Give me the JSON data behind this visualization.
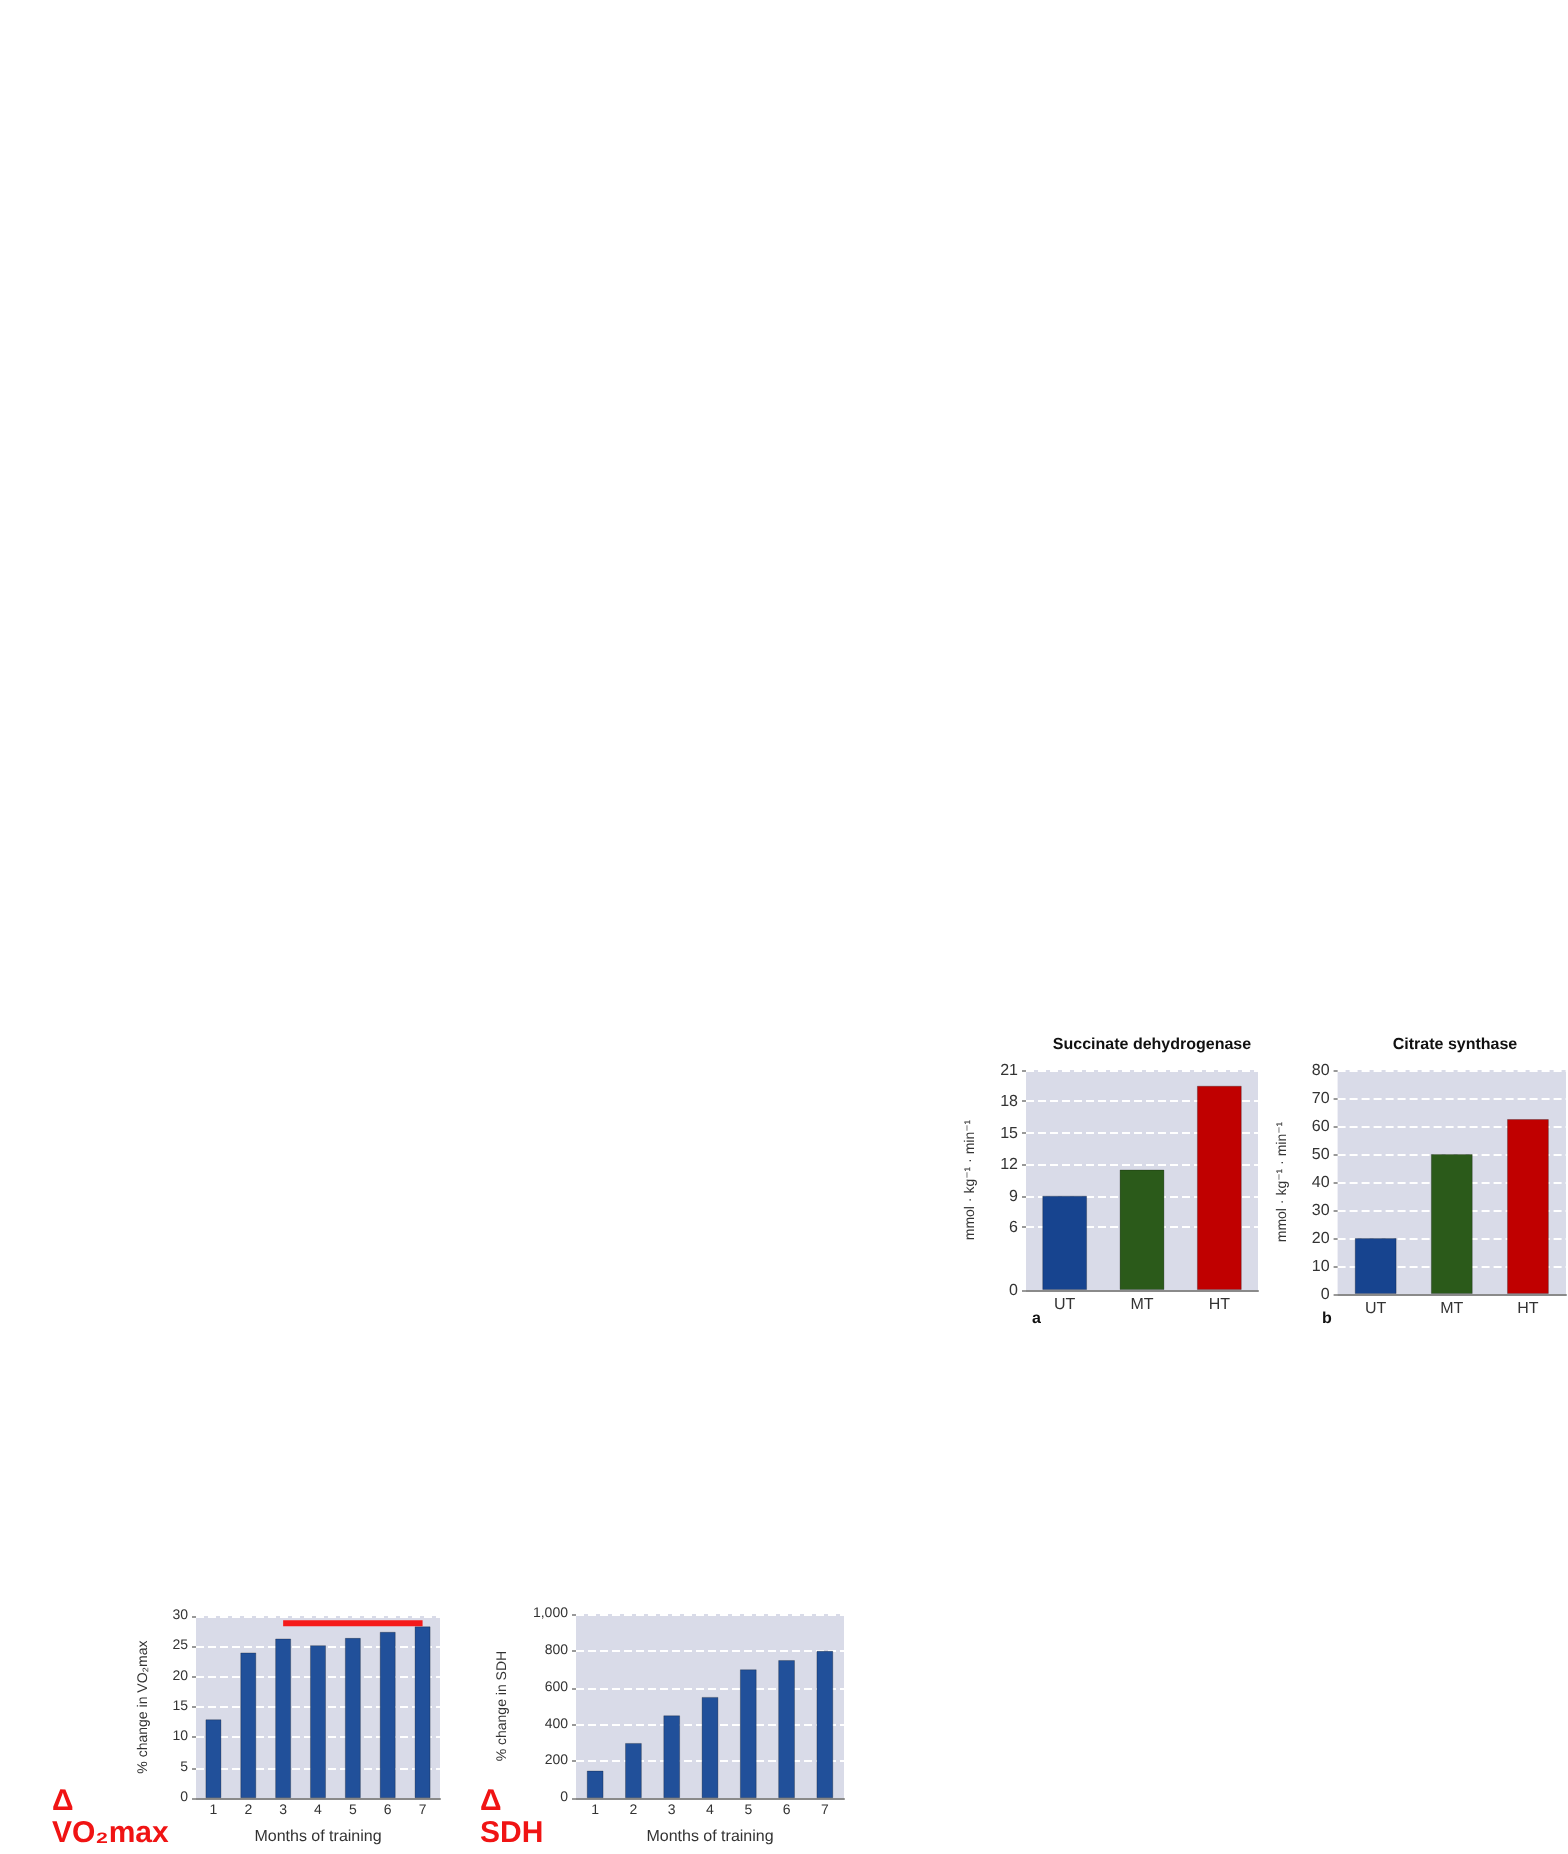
{
  "chart_data": [
    {
      "type": "bar",
      "title": "Succinate dehydrogenase",
      "categories": [
        "UT",
        "MT",
        "HT"
      ],
      "values": [
        9,
        11.5,
        19.5
      ],
      "colors": [
        "#17448f",
        "#2b5a1a",
        "#c00000"
      ],
      "ylabel": "mmol · kg⁻¹ · min⁻¹",
      "ylim": [
        0,
        21
      ],
      "yticks": [
        0,
        6,
        9,
        12,
        15,
        18,
        21
      ],
      "grid": "y",
      "annotations": [
        "a"
      ]
    },
    {
      "type": "bar",
      "title": "Citrate synthase",
      "categories": [
        "UT",
        "MT",
        "HT"
      ],
      "values": [
        20,
        50,
        62.5
      ],
      "colors": [
        "#17448f",
        "#2b5a1a",
        "#c00000"
      ],
      "ylabel": "mmol · kg⁻¹ · min⁻¹",
      "ylim": [
        0,
        80
      ],
      "yticks": [
        0,
        10,
        20,
        30,
        40,
        50,
        60,
        70,
        80
      ],
      "grid": "y",
      "annotations": [
        "b"
      ]
    },
    {
      "type": "bar",
      "categories": [
        "1",
        "2",
        "3",
        "4",
        "5",
        "6",
        "7"
      ],
      "series": [
        {
          "color": "#21509a",
          "values": [
            13,
            24,
            26.3,
            25.2,
            26.4,
            27.4,
            28.3
          ]
        },
        {
          "type": "line",
          "x": [
            "3",
            "7"
          ],
          "values": [
            28.8,
            28.8
          ],
          "color": "#f51a1a"
        }
      ],
      "xlabel": "Months of training",
      "ylabel": "% change in VO₂max",
      "ylim": [
        0,
        30
      ],
      "yticks": [
        0,
        5,
        10,
        15,
        20,
        25,
        30
      ],
      "grid": "y",
      "marker": "none",
      "annotations": [
        "Δ\nVO₂max"
      ]
    },
    {
      "type": "bar",
      "categories": [
        "1",
        "2",
        "3",
        "4",
        "5",
        "6",
        "7"
      ],
      "values": [
        150,
        300,
        450,
        550,
        700,
        750,
        800
      ],
      "color": "#21509a",
      "xlabel": "Months of training",
      "ylabel": "% change in SDH",
      "ylim": [
        0,
        1000
      ],
      "yticks": [
        0,
        200,
        400,
        600,
        800,
        {
          "value": 1000,
          "label": "1,000"
        }
      ],
      "grid": "y",
      "annotations": [
        "Δ\nSDH"
      ]
    }
  ]
}
